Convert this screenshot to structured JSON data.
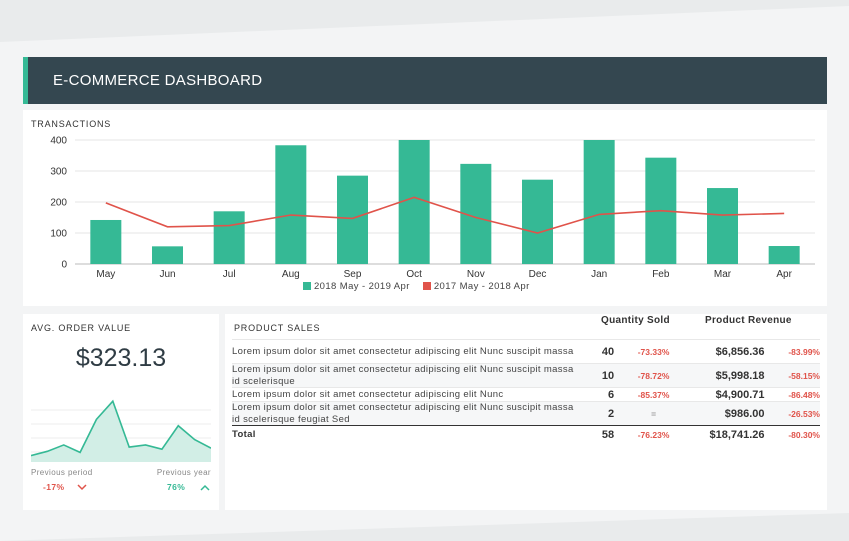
{
  "header": {
    "title": "E-COMMERCE DASHBOARD"
  },
  "colors": {
    "accent": "#35b995",
    "line": "#e0534a",
    "header_bg": "#344750"
  },
  "transactions": {
    "title": "TRANSACTIONS"
  },
  "chart_data": {
    "type": "bar",
    "title": "TRANSACTIONS",
    "categories": [
      "May",
      "Jun",
      "Jul",
      "Aug",
      "Sep",
      "Oct",
      "Nov",
      "Dec",
      "Jan",
      "Feb",
      "Mar",
      "Apr"
    ],
    "series": [
      {
        "name": "2018 May - 2019 Apr",
        "type": "bar",
        "color": "#35b995",
        "values": [
          142,
          57,
          170,
          383,
          285,
          400,
          323,
          272,
          400,
          343,
          245,
          58
        ]
      },
      {
        "name": "2017 May - 2018 Apr",
        "type": "line",
        "color": "#e0534a",
        "values": [
          197,
          120,
          124,
          158,
          147,
          215,
          150,
          100,
          160,
          172,
          158,
          163
        ]
      }
    ],
    "yticks": [
      0,
      100,
      200,
      300,
      400
    ],
    "ylim": [
      0,
      400
    ],
    "grid": true,
    "legend": "bottom"
  },
  "aov": {
    "title": "AVG. ORDER VALUE",
    "value": "$323.13",
    "sparkline": [
      6,
      10,
      16,
      9,
      40,
      57,
      14,
      16,
      12,
      34,
      21,
      13
    ],
    "prev_period_label": "Previous period",
    "prev_period_value": "-17%",
    "prev_year_label": "Previous year",
    "prev_year_value": "76%"
  },
  "product_sales": {
    "title": "PRODUCT SALES",
    "col_qty": "Quantity Sold",
    "col_rev": "Product Revenue",
    "rows": [
      {
        "name": "Lorem ipsum dolor sit amet consectetur adipiscing elit Nunc suscipit massa",
        "qty": "40",
        "qty_pct": "-73.33%",
        "rev": "$6,856.36",
        "rev_pct": "-83.99%"
      },
      {
        "name": "Lorem ipsum dolor sit amet consectetur adipiscing elit Nunc suscipit massa id scelerisque",
        "qty": "10",
        "qty_pct": "-78.72%",
        "rev": "$5,998.18",
        "rev_pct": "-58.15%"
      },
      {
        "name": "Lorem ipsum dolor sit amet consectetur adipiscing elit Nunc",
        "qty": "6",
        "qty_pct": "-85.37%",
        "rev": "$4,900.71",
        "rev_pct": "-86.48%"
      },
      {
        "name": "Lorem ipsum dolor sit amet consectetur adipiscing elit Nunc suscipit massa id scelerisque feugiat Sed",
        "qty": "2",
        "qty_pct": "=",
        "rev": "$986.00",
        "rev_pct": "-26.53%"
      }
    ],
    "total": {
      "label": "Total",
      "qty": "58",
      "qty_pct": "-76.23%",
      "rev": "$18,741.26",
      "rev_pct": "-80.30%"
    }
  }
}
